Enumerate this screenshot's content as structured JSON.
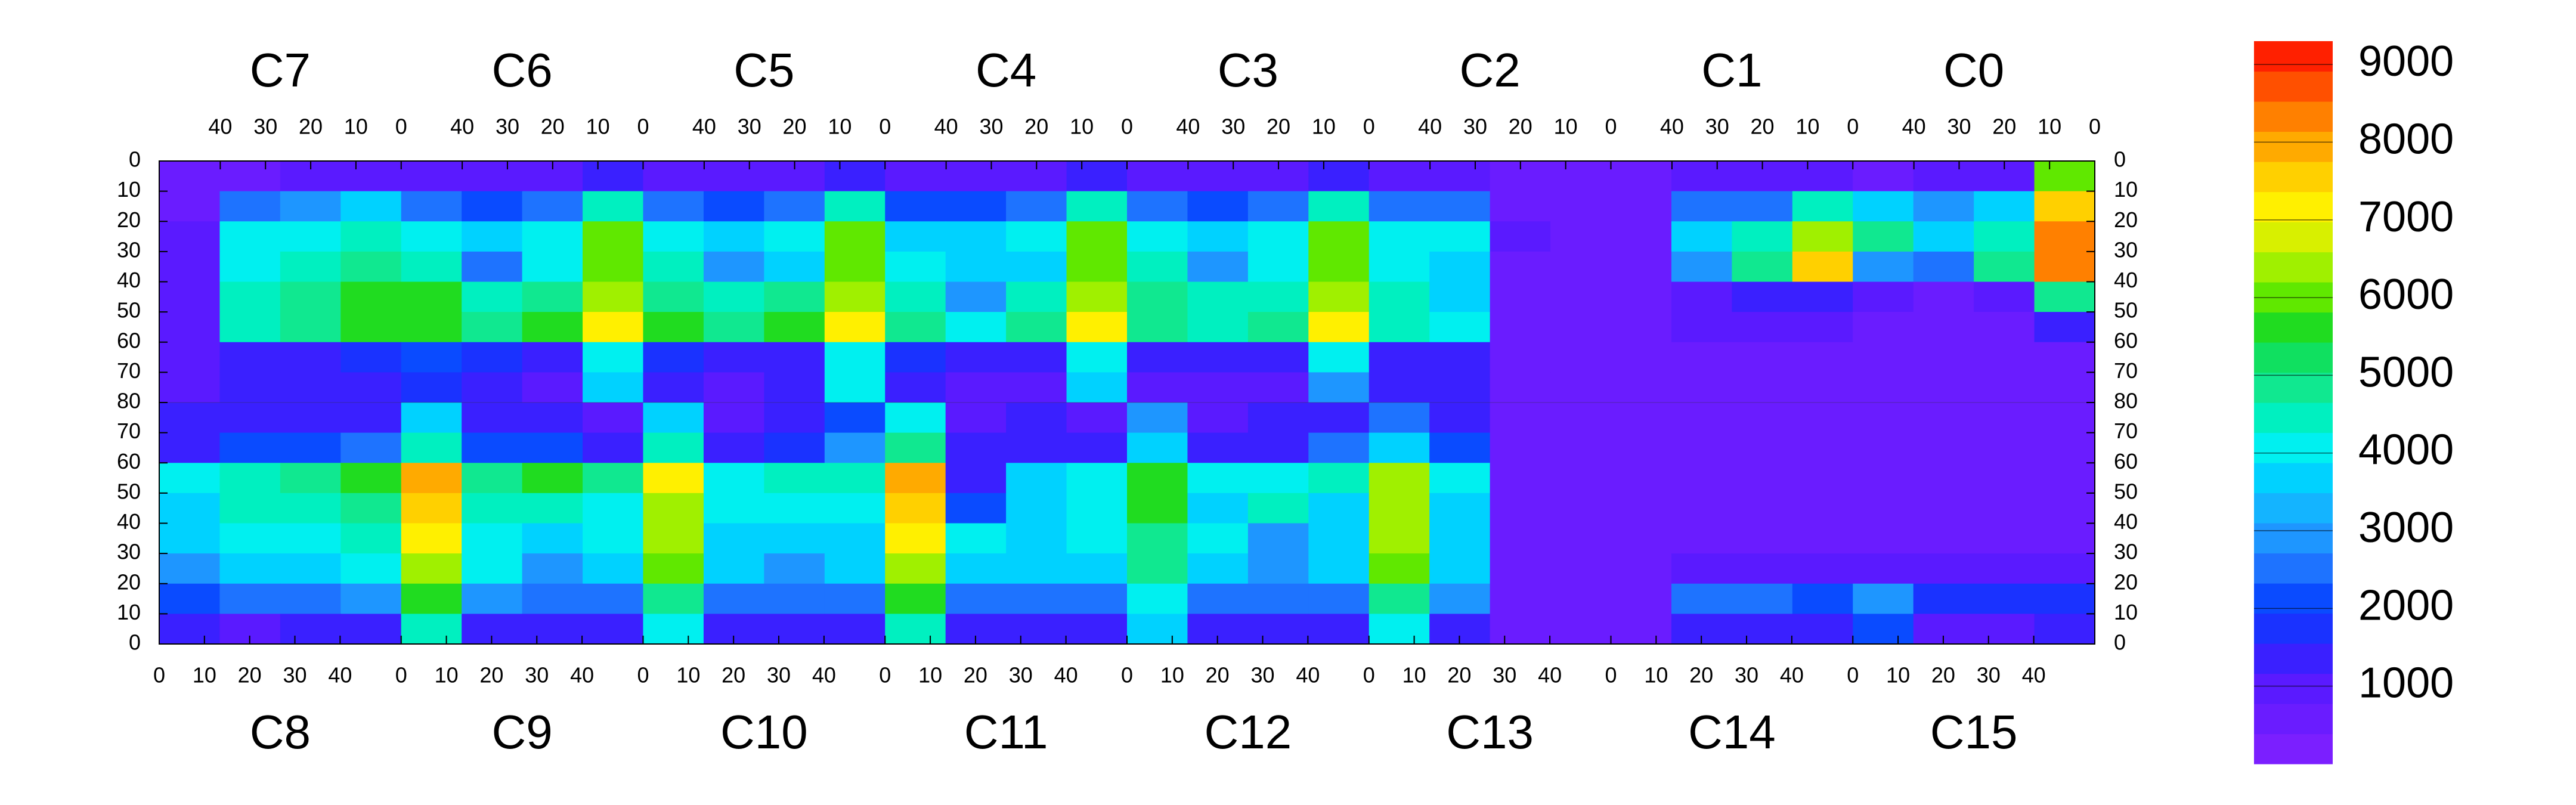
{
  "chart_data": {
    "type": "heatmap",
    "top_chips": [
      "C7",
      "C6",
      "C5",
      "C4",
      "C3",
      "C2",
      "C1",
      "C0"
    ],
    "bottom_chips": [
      "C8",
      "C9",
      "C10",
      "C11",
      "C12",
      "C13",
      "C14",
      "C15"
    ],
    "xlim": [
      0,
      53.5
    ],
    "xticks": [
      0,
      10,
      20,
      30,
      40
    ],
    "ylim": [
      0,
      80
    ],
    "yticks": [
      0,
      10,
      20,
      30,
      40,
      50,
      60,
      70,
      80
    ],
    "zlim": [
      0,
      9300
    ],
    "zticks": [
      1000,
      2000,
      3000,
      4000,
      5000,
      6000,
      7000,
      8000,
      9000
    ],
    "palette": [
      "#7b1fff",
      "#6a1cff",
      "#5a1aff",
      "#3a20ff",
      "#1a32ff",
      "#0a4bff",
      "#1e73ff",
      "#1e96ff",
      "#14b4ff",
      "#00d2ff",
      "#00f0f0",
      "#00f0c0",
      "#10e890",
      "#10e060",
      "#20dc20",
      "#60e800",
      "#a0f000",
      "#d8f000",
      "#fff000",
      "#ffd000",
      "#ffaa00",
      "#ff8000",
      "#ff5000",
      "#ff2000"
    ],
    "z": [
      [
        600,
        700,
        800,
        900,
        800,
        800,
        800,
        1200,
        800,
        800,
        800,
        1200,
        800,
        800,
        800,
        1200,
        800,
        800,
        800,
        1200,
        800,
        800,
        600,
        600,
        600,
        900,
        900,
        800,
        700,
        800,
        900,
        6000
      ],
      [
        700,
        2500,
        3000,
        3500,
        2500,
        2000,
        2500,
        4500,
        2500,
        2000,
        2500,
        4500,
        2000,
        2000,
        2500,
        4500,
        2500,
        2000,
        2500,
        4500,
        2500,
        2500,
        700,
        600,
        700,
        2500,
        2500,
        4500,
        3500,
        3000,
        3500,
        7500
      ],
      [
        900,
        4000,
        4000,
        4500,
        4000,
        3500,
        4000,
        6000,
        4000,
        3500,
        4000,
        6000,
        3500,
        3500,
        4000,
        6000,
        4000,
        3500,
        4000,
        6000,
        4000,
        4000,
        800,
        600,
        700,
        3500,
        4500,
        6500,
        5000,
        3500,
        4500,
        8500
      ],
      [
        1000,
        4000,
        4500,
        5000,
        4500,
        2500,
        4000,
        6000,
        4500,
        3000,
        3500,
        6000,
        4000,
        3500,
        3500,
        6000,
        4500,
        3000,
        4000,
        6000,
        4000,
        3500,
        700,
        600,
        600,
        3000,
        5000,
        7500,
        3000,
        2500,
        5000,
        8500
      ],
      [
        1000,
        4500,
        5000,
        5500,
        5500,
        4500,
        5000,
        6500,
        5000,
        4500,
        5000,
        6500,
        4500,
        3000,
        4500,
        6500,
        5000,
        4500,
        4500,
        6500,
        4500,
        3500,
        700,
        600,
        600,
        900,
        1500,
        1500,
        800,
        700,
        800,
        5000
      ],
      [
        1000,
        4500,
        5000,
        5500,
        5500,
        5000,
        5500,
        7000,
        5500,
        5000,
        5500,
        7000,
        5000,
        4000,
        5000,
        7000,
        5000,
        4500,
        5000,
        7000,
        4500,
        4000,
        700,
        600,
        600,
        800,
        800,
        800,
        700,
        700,
        700,
        1200
      ],
      [
        1000,
        1500,
        1500,
        1800,
        2000,
        1800,
        1500,
        4000,
        1800,
        1500,
        1500,
        4000,
        1800,
        1500,
        1200,
        4000,
        1500,
        1500,
        1500,
        4000,
        1500,
        1500,
        600,
        600,
        600,
        700,
        700,
        700,
        700,
        700,
        700,
        700
      ],
      [
        900,
        1200,
        1200,
        1500,
        1800,
        1500,
        1000,
        3500,
        1200,
        1000,
        1500,
        4000,
        1200,
        1000,
        1000,
        3500,
        1000,
        1000,
        1000,
        3000,
        1200,
        1200,
        600,
        600,
        600,
        700,
        700,
        700,
        700,
        700,
        700,
        700
      ],
      [
        1200,
        1500,
        1500,
        1500,
        3500,
        1200,
        1200,
        800,
        3500,
        1000,
        1200,
        2000,
        4000,
        1000,
        1200,
        1000,
        3000,
        1000,
        1200,
        1500,
        2500,
        1500,
        600,
        600,
        600,
        700,
        700,
        700,
        700,
        700,
        700,
        700
      ],
      [
        1500,
        2000,
        2000,
        2500,
        4500,
        2000,
        2000,
        1500,
        4500,
        1500,
        1800,
        3000,
        5000,
        1500,
        1500,
        1500,
        3500,
        1500,
        1500,
        2500,
        3500,
        2000,
        600,
        600,
        600,
        700,
        700,
        700,
        700,
        700,
        700,
        700
      ],
      [
        4000,
        4500,
        5000,
        5500,
        8000,
        5000,
        5500,
        5000,
        7000,
        4000,
        4500,
        4500,
        8000,
        1500,
        3500,
        4000,
        5500,
        4000,
        4000,
        4500,
        6500,
        4000,
        700,
        600,
        600,
        700,
        700,
        700,
        700,
        700,
        700,
        700
      ],
      [
        3500,
        4500,
        4500,
        5000,
        7500,
        4500,
        4500,
        4000,
        6500,
        4000,
        4000,
        4000,
        7500,
        2000,
        3500,
        4000,
        5500,
        3500,
        4500,
        3500,
        6500,
        3500,
        700,
        600,
        600,
        700,
        700,
        700,
        700,
        700,
        700,
        700
      ],
      [
        3500,
        4000,
        4000,
        4500,
        7000,
        4000,
        3500,
        4000,
        6500,
        3500,
        3500,
        3500,
        7000,
        4000,
        3500,
        4000,
        5000,
        4000,
        3000,
        3500,
        6500,
        3500,
        700,
        600,
        600,
        700,
        700,
        700,
        700,
        700,
        700,
        700
      ],
      [
        3000,
        3500,
        3500,
        4000,
        6500,
        4000,
        3000,
        3500,
        6000,
        3500,
        3000,
        3500,
        6500,
        3500,
        3500,
        3500,
        5000,
        3500,
        3000,
        3500,
        6000,
        3500,
        700,
        600,
        600,
        900,
        1000,
        900,
        800,
        800,
        800,
        800
      ],
      [
        2000,
        2500,
        2500,
        3000,
        5500,
        3000,
        2500,
        2500,
        5000,
        2500,
        2500,
        2500,
        5500,
        2500,
        2500,
        2500,
        4000,
        2500,
        2500,
        2500,
        5000,
        3000,
        700,
        600,
        600,
        2500,
        2500,
        2000,
        3000,
        1800,
        1800,
        1800
      ],
      [
        1500,
        1000,
        1200,
        1200,
        4500,
        1500,
        1200,
        1200,
        4000,
        1500,
        1200,
        1200,
        4500,
        1500,
        1200,
        1200,
        3500,
        1500,
        1200,
        1200,
        4000,
        1500,
        600,
        600,
        600,
        1500,
        1500,
        1200,
        2000,
        1000,
        1000,
        1200
      ]
    ]
  }
}
